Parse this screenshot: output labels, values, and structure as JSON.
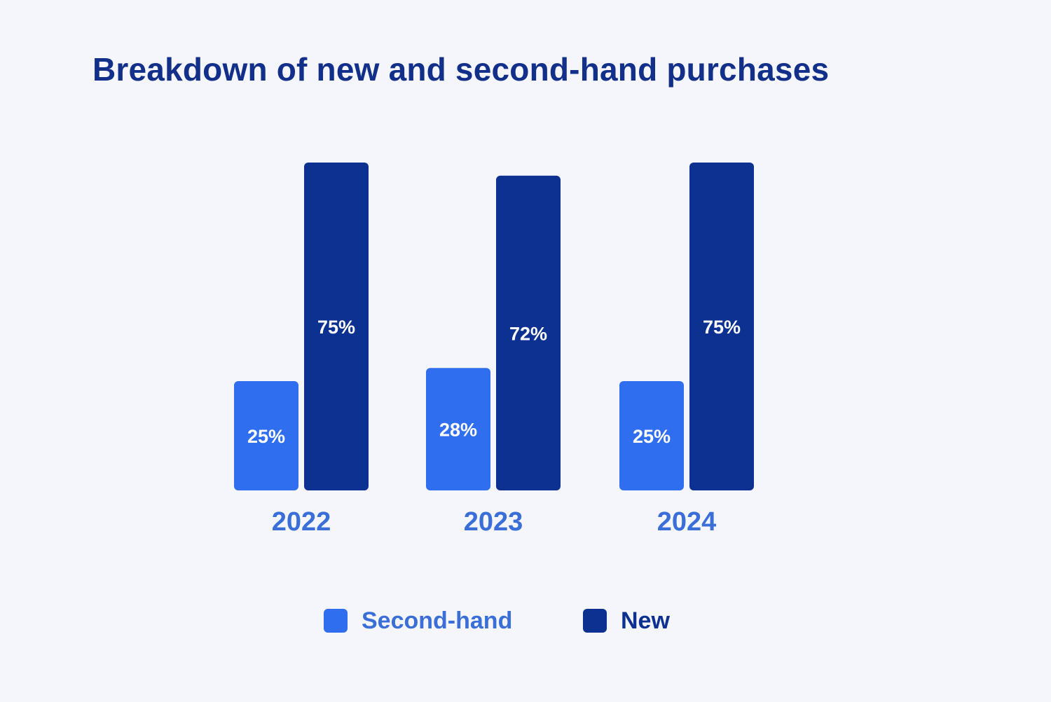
{
  "chart_data": {
    "type": "bar",
    "title": "Breakdown of new and second-hand purchases",
    "categories": [
      "2022",
      "2023",
      "2024"
    ],
    "series": [
      {
        "name": "Second-hand",
        "values": [
          25,
          28,
          25
        ],
        "labels": [
          "25%",
          "28%",
          "25%"
        ],
        "color": "#306ef0"
      },
      {
        "name": "New",
        "values": [
          75,
          72,
          75
        ],
        "labels": [
          "75%",
          "72%",
          "75%"
        ],
        "color": "#0c3190"
      }
    ],
    "unit": "%",
    "xlabel": "",
    "ylabel": "",
    "ylim": [
      0,
      75
    ],
    "grid": false,
    "legend_position": "bottom",
    "colors": {
      "background": "#f5f6fb",
      "title": "#12308a",
      "category_label": "#3a6fd8",
      "bar_label": "#ffffff"
    }
  }
}
